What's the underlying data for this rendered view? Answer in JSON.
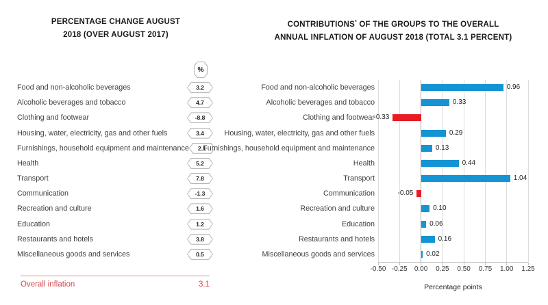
{
  "left_panel": {
    "title_line1": "PERCENTAGE CHANGE AUGUST",
    "title_line2": "2018 (OVER AUGUST 2017)",
    "unit_label": "%",
    "items": [
      {
        "label": "Food and non-alcoholic beverages",
        "value": "3.2"
      },
      {
        "label": "Alcoholic beverages and tobacco",
        "value": "4.7"
      },
      {
        "label": "Clothing and footwear",
        "value": "-8.8"
      },
      {
        "label": "Housing, water, electricity, gas and other fuels",
        "value": "3.4"
      },
      {
        "label": "Furnishings, household equipment and maintenance",
        "value": "2.1"
      },
      {
        "label": "Health",
        "value": "5.2"
      },
      {
        "label": "Transport",
        "value": "7.8"
      },
      {
        "label": "Communication",
        "value": "-1.3"
      },
      {
        "label": "Recreation and culture",
        "value": "1.6"
      },
      {
        "label": "Education",
        "value": "1.2"
      },
      {
        "label": "Restaurants and hotels",
        "value": "3.8"
      },
      {
        "label": "Miscellaneous goods and services",
        "value": "0.5"
      }
    ],
    "footer": {
      "label": "Overall inflation",
      "value": "3.1"
    }
  },
  "right_panel": {
    "title_part1": "CONTRIBUTIONS",
    "title_sup": "*",
    "title_part2": " OF THE GROUPS TO THE OVERALL",
    "title_line2": "ANNUAL INFLATION OF AUGUST 2018 (TOTAL 3.1 PERCENT)"
  },
  "chart_data": {
    "type": "bar",
    "orientation": "horizontal",
    "title": "CONTRIBUTIONS* OF THE GROUPS TO THE OVERALL ANNUAL INFLATION OF AUGUST 2018 (TOTAL 3.1 PERCENT)",
    "categories": [
      "Food and non-alcoholic beverages",
      "Alcoholic beverages and tobacco",
      "Clothing and footwear",
      "Housing, water, electricity, gas and other fuels",
      "Furnishings, household equipment and maintenance",
      "Health",
      "Transport",
      "Communication",
      "Recreation and culture",
      "Education",
      "Restaurants and hotels",
      "Miscellaneous goods and services"
    ],
    "values": [
      0.96,
      0.33,
      -0.33,
      0.29,
      0.13,
      0.44,
      1.04,
      -0.05,
      0.1,
      0.06,
      0.16,
      0.02
    ],
    "value_labels": [
      "0.96",
      "0.33",
      "-0.33",
      "0.29",
      "0.13",
      "0.44",
      "1.04",
      "-0.05",
      "0.10",
      "0.06",
      "0.16",
      "0.02"
    ],
    "xlabel": "Percentage points",
    "xlim": [
      -0.5,
      1.25
    ],
    "xticks": [
      "-0.50",
      "-0.25",
      "0.00",
      "0.25",
      "0.50",
      "0.75",
      "1.00",
      "1.25"
    ],
    "grid": true,
    "legend": "none"
  },
  "colors": {
    "bar_positive": "#1594d4",
    "bar_negative": "#e81c26",
    "overall_inflation_text": "#d14a50",
    "gridline": "#dcdcdc",
    "zero_line": "#a8a8a8",
    "badge_border": "#b3b3b3"
  }
}
